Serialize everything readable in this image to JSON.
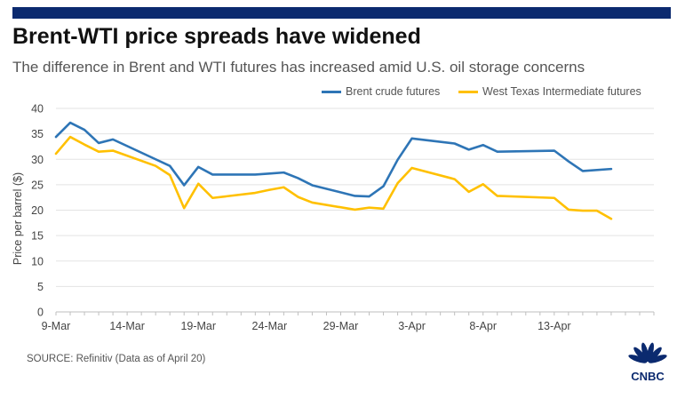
{
  "header": {
    "title": "Brent-WTI price spreads have widened",
    "subtitle": "The difference in Brent and WTI futures has increased amid U.S. oil storage concerns"
  },
  "source": "SOURCE: Refinitiv (Data as of April 20)",
  "logo": {
    "text": "CNBC",
    "icon": "peacock-icon"
  },
  "colors": {
    "brent": "#2e75b6",
    "wti": "#ffc000",
    "topbar": "#0b2a6f"
  },
  "chart_data": {
    "type": "line",
    "title": "Brent-WTI price spreads have widened",
    "ylabel": "Price per barrel ($)",
    "ylim": [
      0,
      40
    ],
    "yticks": [
      0,
      5,
      10,
      15,
      20,
      25,
      30,
      35,
      40
    ],
    "x_range": [
      "2020-03-09",
      "2020-04-20"
    ],
    "x_ticks": [
      {
        "date": "2020-03-09",
        "label": "9-Mar"
      },
      {
        "date": "2020-03-14",
        "label": "14-Mar"
      },
      {
        "date": "2020-03-19",
        "label": "19-Mar"
      },
      {
        "date": "2020-03-24",
        "label": "24-Mar"
      },
      {
        "date": "2020-03-29",
        "label": "29-Mar"
      },
      {
        "date": "2020-04-03",
        "label": "3-Apr"
      },
      {
        "date": "2020-04-08",
        "label": "8-Apr"
      },
      {
        "date": "2020-04-13",
        "label": "13-Apr"
      }
    ],
    "grid": true,
    "legend_position": "top-right",
    "series": [
      {
        "name": "Brent crude futures",
        "points": [
          [
            "2020-03-09",
            34.4
          ],
          [
            "2020-03-10",
            37.2
          ],
          [
            "2020-03-11",
            35.8
          ],
          [
            "2020-03-12",
            33.2
          ],
          [
            "2020-03-13",
            33.9
          ],
          [
            "2020-03-16",
            30.0
          ],
          [
            "2020-03-17",
            28.7
          ],
          [
            "2020-03-18",
            24.9
          ],
          [
            "2020-03-19",
            28.5
          ],
          [
            "2020-03-20",
            27.0
          ],
          [
            "2020-03-23",
            27.0
          ],
          [
            "2020-03-24",
            27.2
          ],
          [
            "2020-03-25",
            27.4
          ],
          [
            "2020-03-26",
            26.3
          ],
          [
            "2020-03-27",
            24.9
          ],
          [
            "2020-03-30",
            22.8
          ],
          [
            "2020-03-31",
            22.7
          ],
          [
            "2020-04-01",
            24.7
          ],
          [
            "2020-04-02",
            29.9
          ],
          [
            "2020-04-03",
            34.1
          ],
          [
            "2020-04-06",
            33.1
          ],
          [
            "2020-04-07",
            31.9
          ],
          [
            "2020-04-08",
            32.8
          ],
          [
            "2020-04-09",
            31.5
          ],
          [
            "2020-04-13",
            31.7
          ],
          [
            "2020-04-14",
            29.6
          ],
          [
            "2020-04-15",
            27.7
          ],
          [
            "2020-04-17",
            28.1
          ]
        ]
      },
      {
        "name": "West Texas Intermediate futures",
        "points": [
          [
            "2020-03-09",
            31.1
          ],
          [
            "2020-03-10",
            34.4
          ],
          [
            "2020-03-11",
            32.9
          ],
          [
            "2020-03-12",
            31.5
          ],
          [
            "2020-03-13",
            31.7
          ],
          [
            "2020-03-16",
            28.7
          ],
          [
            "2020-03-17",
            26.9
          ],
          [
            "2020-03-18",
            20.4
          ],
          [
            "2020-03-19",
            25.2
          ],
          [
            "2020-03-20",
            22.4
          ],
          [
            "2020-03-23",
            23.4
          ],
          [
            "2020-03-24",
            24.0
          ],
          [
            "2020-03-25",
            24.5
          ],
          [
            "2020-03-26",
            22.6
          ],
          [
            "2020-03-27",
            21.5
          ],
          [
            "2020-03-30",
            20.1
          ],
          [
            "2020-03-31",
            20.5
          ],
          [
            "2020-04-01",
            20.3
          ],
          [
            "2020-04-02",
            25.3
          ],
          [
            "2020-04-03",
            28.3
          ],
          [
            "2020-04-06",
            26.1
          ],
          [
            "2020-04-07",
            23.6
          ],
          [
            "2020-04-08",
            25.1
          ],
          [
            "2020-04-09",
            22.8
          ],
          [
            "2020-04-13",
            22.4
          ],
          [
            "2020-04-14",
            20.1
          ],
          [
            "2020-04-15",
            19.9
          ],
          [
            "2020-04-16",
            19.9
          ],
          [
            "2020-04-17",
            18.3
          ]
        ]
      }
    ]
  }
}
